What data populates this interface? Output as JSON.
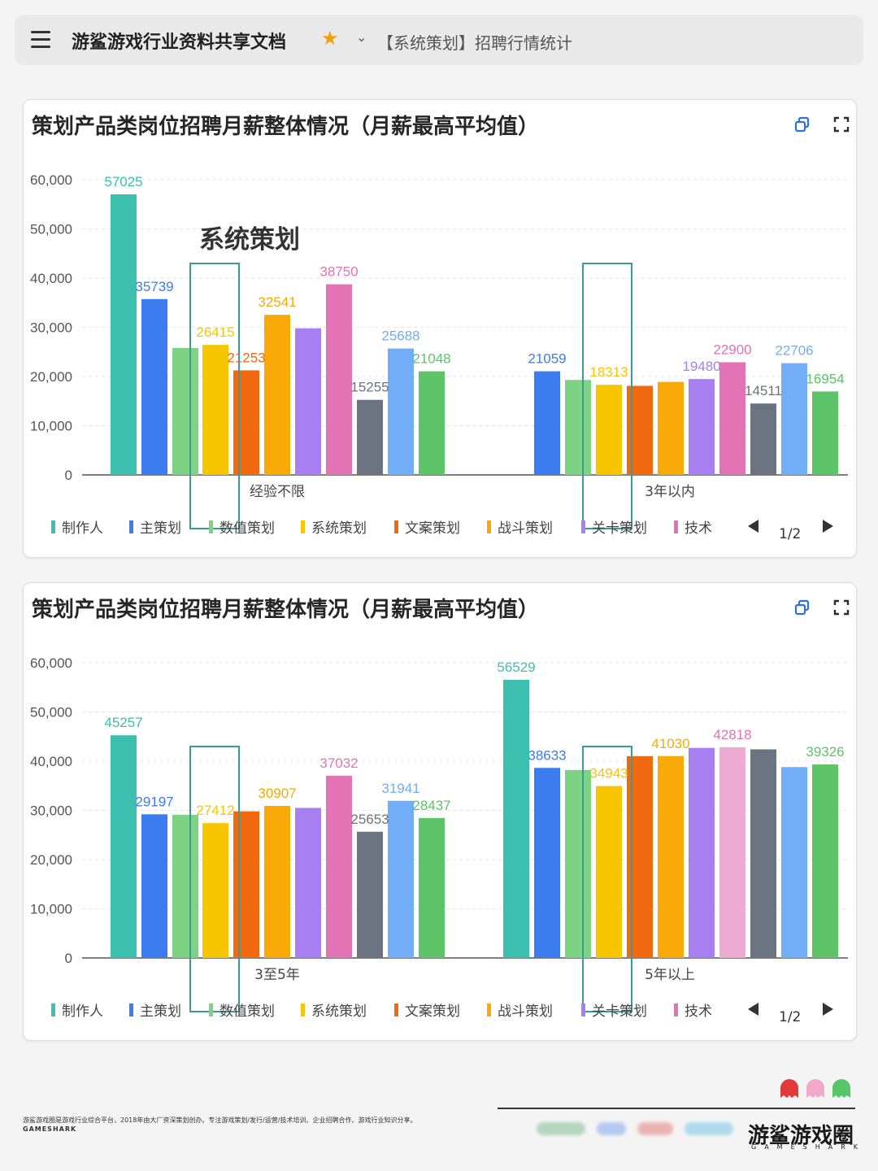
{
  "topbar": {
    "doc_title": "游鲨游戏行业资料共享文档",
    "breadcrumb": "【系统策划】招聘行情统计"
  },
  "highlight_label": "系统策划",
  "legend": {
    "items": [
      "制作人",
      "主策划",
      "数值策划",
      "系统策划",
      "文案策划",
      "战斗策划",
      "关卡策划",
      "技术"
    ],
    "page": "1/2"
  },
  "series_colors": [
    "#3dbfb0",
    "#3b7cf0",
    "#7dd284",
    "#f7c600",
    "#f06810",
    "#f9a908",
    "#a87ff0",
    "#e273b4",
    "#edaad2",
    "#6b7480",
    "#72aef7",
    "#5ec468"
  ],
  "label_colors": [
    "#3dbfb0",
    "#3b7cf0",
    "#f7c600",
    "#f7c600",
    "#f06810",
    "#f9a908",
    "#a87ff0",
    "#e273b4",
    "#e273b4",
    "#6b7480",
    "#72aef7",
    "#5ec468"
  ],
  "chart_data": [
    {
      "type": "bar",
      "title": "策划产品类岗位招聘月薪整体情况（月薪最高平均值）",
      "categories": [
        "经验不限",
        "3年以内"
      ],
      "y_ticks": [
        "0",
        "10,000",
        "20,000",
        "30,000",
        "40,000",
        "50,000",
        "60,000"
      ],
      "ylim": [
        0,
        60000
      ],
      "groups": [
        {
          "category": "经验不限",
          "values": [
            57025,
            35739,
            25800,
            26415,
            21253,
            32541,
            29800,
            38750,
            null,
            15255,
            25688,
            21048
          ],
          "labels": [
            "57025",
            "35739",
            "",
            "26415",
            "21253",
            "32541",
            "",
            "38750",
            "",
            "15255",
            "25688",
            "21048"
          ]
        },
        {
          "category": "3年以内",
          "values": [
            null,
            21059,
            19300,
            18313,
            18100,
            18900,
            19480,
            22900,
            null,
            14511,
            22706,
            16954
          ],
          "labels": [
            "",
            "21059",
            "",
            "18313",
            "",
            "",
            "19480",
            "22900",
            "",
            "14511",
            "22706",
            "16954"
          ]
        }
      ]
    },
    {
      "type": "bar",
      "title": "策划产品类岗位招聘月薪整体情况（月薪最高平均值）",
      "categories": [
        "3至5年",
        "5年以上"
      ],
      "y_ticks": [
        "0",
        "10,000",
        "20,000",
        "30,000",
        "40,000",
        "50,000",
        "60,000"
      ],
      "ylim": [
        0,
        60000
      ],
      "groups": [
        {
          "category": "3至5年",
          "values": [
            45257,
            29197,
            29100,
            27412,
            29800,
            30907,
            30500,
            37032,
            null,
            25653,
            31941,
            28437
          ],
          "labels": [
            "45257",
            "29197",
            "",
            "27412",
            "",
            "30907",
            "",
            "37032",
            "",
            "25653",
            "31941",
            "28437"
          ]
        },
        {
          "category": "5年以上",
          "values": [
            56529,
            38633,
            38200,
            34943,
            41000,
            41030,
            42700,
            null,
            42818,
            42400,
            38800,
            39326
          ],
          "labels": [
            "",
            "38633",
            "",
            "34943",
            "",
            "41030",
            "",
            "",
            "42818",
            "",
            "",
            "39326"
          ],
          "top_label": "56529"
        }
      ]
    }
  ],
  "footer": {
    "description": "游鲨游戏圈是游戏行业综合平台，2018年由大厂资深策划创办。专注游戏策划/发行/运营/技术培训、企业招聘合作、游戏行业知识分享。",
    "brand_small": "GAMESHARK",
    "logo": "游鲨游戏圈",
    "logo_sub": "GAMESHARK"
  }
}
